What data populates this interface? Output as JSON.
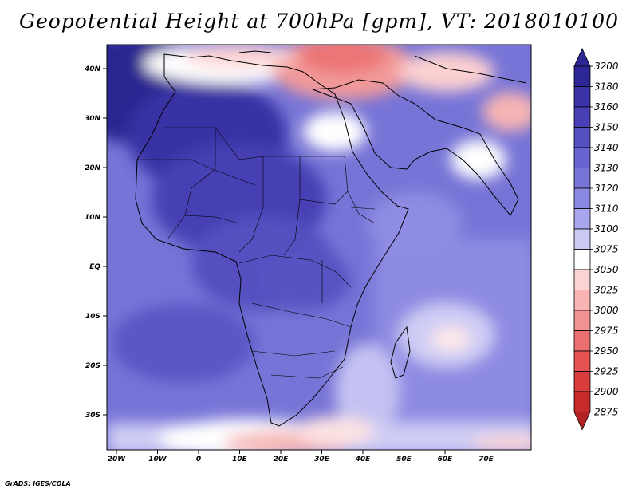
{
  "title": "Geopotential Height at 700hPa [gpm], VT: 2018010100",
  "credit": "GrADS: IGES/COLA",
  "axes": {
    "lon_labels": [
      "20W",
      "10W",
      "0",
      "10E",
      "20E",
      "30E",
      "40E",
      "50E",
      "60E",
      "70E"
    ],
    "lat_labels": [
      "40N",
      "30N",
      "20N",
      "10N",
      "EQ",
      "10S",
      "20S",
      "30S"
    ]
  },
  "colorbar": {
    "levels": [
      "3200",
      "3180",
      "3160",
      "3150",
      "3140",
      "3130",
      "3120",
      "3110",
      "3100",
      "3075",
      "3050",
      "3025",
      "3000",
      "2975",
      "2950",
      "2925",
      "2900",
      "2875"
    ],
    "colors": [
      "#2d2696",
      "#3b32a8",
      "#4940b6",
      "#5650c3",
      "#6864cf",
      "#7874d8",
      "#8b88e2",
      "#a8a6ec",
      "#cac9f4",
      "#ffffff",
      "#fcd3d3",
      "#f8b3b3",
      "#f39292",
      "#ec7070",
      "#e45252",
      "#d93c3c",
      "#c62a2a",
      "#b22222"
    ]
  }
}
